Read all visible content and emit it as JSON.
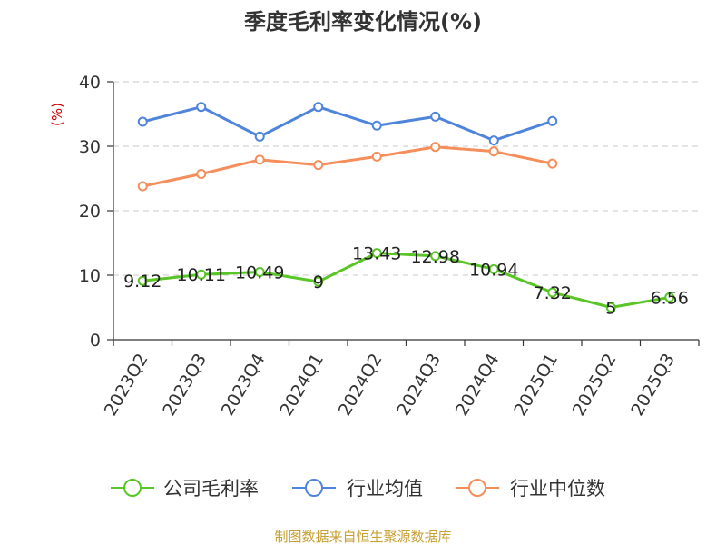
{
  "chart_data": {
    "type": "line",
    "title": "季度毛利率变化情况(%)",
    "unit_label": "(%)",
    "categories": [
      "2023Q2",
      "2023Q3",
      "2023Q4",
      "2024Q1",
      "2024Q2",
      "2024Q3",
      "2024Q4",
      "2025Q1",
      "2025Q2",
      "2025Q3"
    ],
    "y_ticks": [
      "0",
      "10",
      "20",
      "30",
      "40"
    ],
    "ylim": [
      0,
      40
    ],
    "grid": true,
    "legend_position": "bottom",
    "series": [
      {
        "name": "公司毛利率",
        "color": "#5ac526",
        "values": [
          9.12,
          10.11,
          10.49,
          9,
          13.43,
          12.98,
          10.94,
          7.32,
          5,
          6.56
        ],
        "labels": [
          "9.12",
          "10.11",
          "10.49",
          "9",
          "13.43",
          "12.98",
          "10.94",
          "7.32",
          "5",
          "6.56"
        ]
      },
      {
        "name": "行业均值",
        "color": "#4f84dc",
        "values": [
          33.8,
          36.1,
          31.5,
          36.1,
          33.2,
          34.6,
          30.9,
          33.9,
          null,
          null
        ]
      },
      {
        "name": "行业中位数",
        "color": "#f58e5a",
        "values": [
          23.8,
          25.7,
          27.9,
          27.1,
          28.4,
          29.9,
          29.2,
          27.3,
          null,
          null
        ]
      }
    ]
  },
  "source": "制图数据来自恒生聚源数据库"
}
